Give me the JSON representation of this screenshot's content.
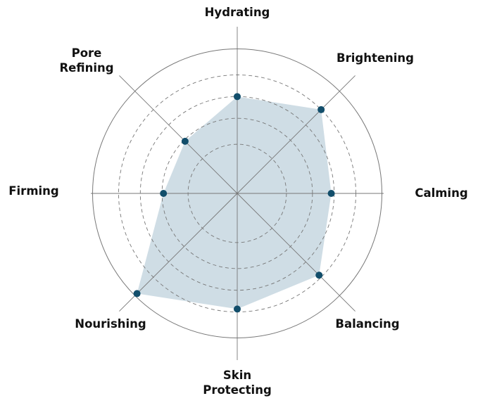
{
  "chart_data": {
    "type": "radar",
    "axes": [
      "Hydrating",
      "Brightening",
      "Calming",
      "Balancing",
      "Skin Protecting",
      "Nourishing",
      "Firming",
      "Pore Refining"
    ],
    "axis_label_lines": [
      [
        "Hydrating"
      ],
      [
        "Brightening"
      ],
      [
        "Calming"
      ],
      [
        "Balancing"
      ],
      [
        "Skin",
        "Protecting"
      ],
      [
        "Nourishing"
      ],
      [
        "Firming"
      ],
      [
        "Pore",
        "Refining"
      ]
    ],
    "values": [
      67,
      82,
      65,
      80,
      80,
      98,
      51,
      51
    ],
    "range": [
      0,
      100
    ],
    "gridlines": [
      34,
      52,
      67,
      82
    ],
    "grid": true,
    "legend": "none",
    "colors": {
      "fill": "#cfdde5",
      "point": "#124e6b",
      "grid": "#777777"
    }
  }
}
